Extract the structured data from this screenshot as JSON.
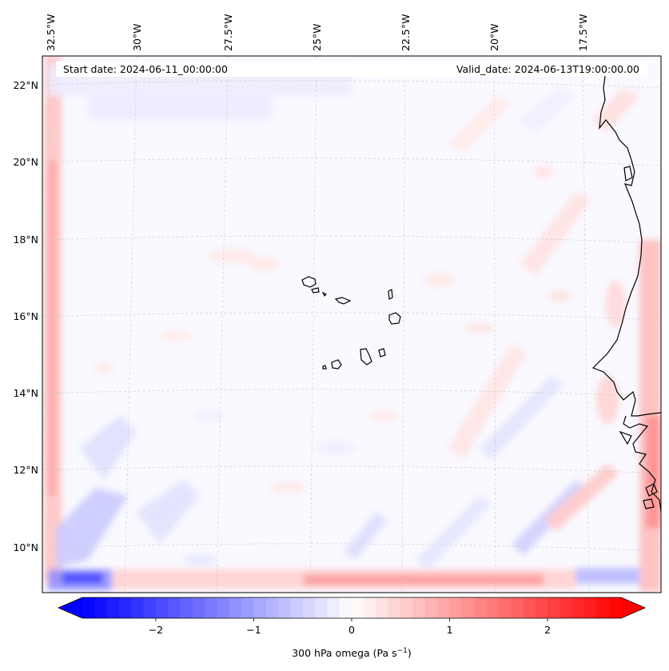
{
  "map": {
    "header": {
      "start_date": "Start date: 2024-06-11_00:00:00",
      "valid_date": "Valid_date: 2024-06-13T19:00:00.00"
    },
    "longitude_labels": [
      "32.5°W",
      "30°W",
      "27.5°W",
      "25°W",
      "22.5°W",
      "20°W",
      "17.5°W"
    ],
    "latitude_labels": [
      "22°N",
      "20°N",
      "18°N",
      "16°N",
      "14°N",
      "12°N",
      "10°N"
    ],
    "gridlines": "dashed",
    "coastline_color": "#000000"
  },
  "colorbar": {
    "label": "300 hPa omega (Pa s",
    "label_sup": "−1",
    "label_end": ")",
    "ticks": [
      "−2",
      "−1",
      "0",
      "1",
      "2"
    ],
    "range": [
      -2.75,
      2.75
    ],
    "colormap": "bwr",
    "min_color": "#0000ff",
    "mid_color": "#ffffff",
    "max_color": "#ff0000",
    "extend": "both"
  }
}
